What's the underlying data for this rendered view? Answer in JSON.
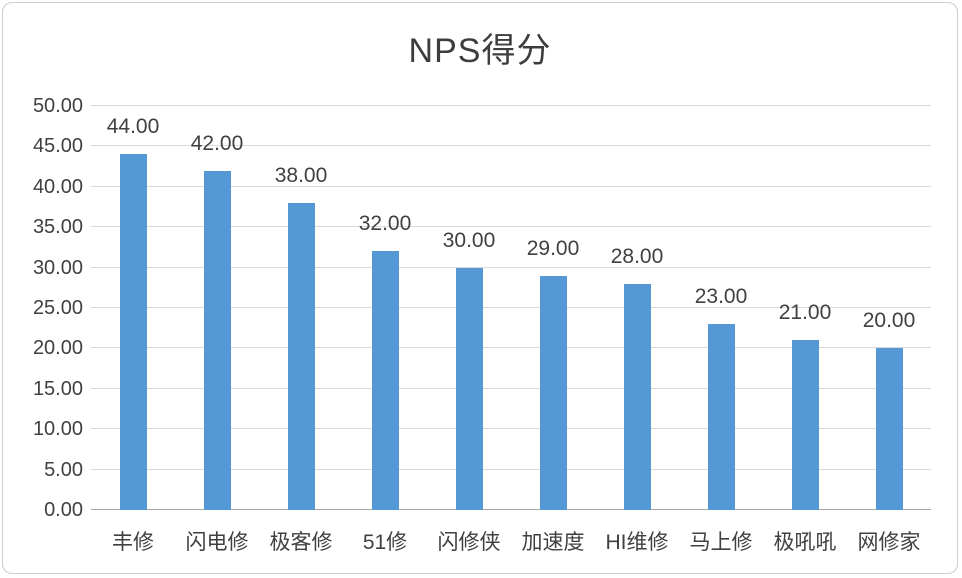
{
  "chart_data": {
    "type": "bar",
    "title": "NPS得分",
    "categories": [
      "丰修",
      "闪电修",
      "极客修",
      "51修",
      "闪修侠",
      "加速度",
      "HI维修",
      "马上修",
      "极吼吼",
      "网修家"
    ],
    "values": [
      44,
      42,
      38,
      32,
      30,
      29,
      28,
      23,
      21,
      20
    ],
    "data_labels": [
      "44.00",
      "42.00",
      "38.00",
      "32.00",
      "30.00",
      "29.00",
      "28.00",
      "23.00",
      "21.00",
      "20.00"
    ],
    "xlabel": "",
    "ylabel": "",
    "ylim": [
      0,
      50
    ],
    "ytick_step": 5,
    "ytick_labels": [
      "0.00",
      "5.00",
      "10.00",
      "15.00",
      "20.00",
      "25.00",
      "30.00",
      "35.00",
      "40.00",
      "45.00",
      "50.00"
    ],
    "grid": true,
    "legend_position": "none",
    "colors": {
      "bar": "#5598d6",
      "gridline": "#d9d9d9",
      "axis_line": "#a6a6a6",
      "text": "#404040",
      "title_text": "#3d3d3d",
      "frame_border": "#cfcfcf",
      "background": "#ffffff"
    }
  }
}
